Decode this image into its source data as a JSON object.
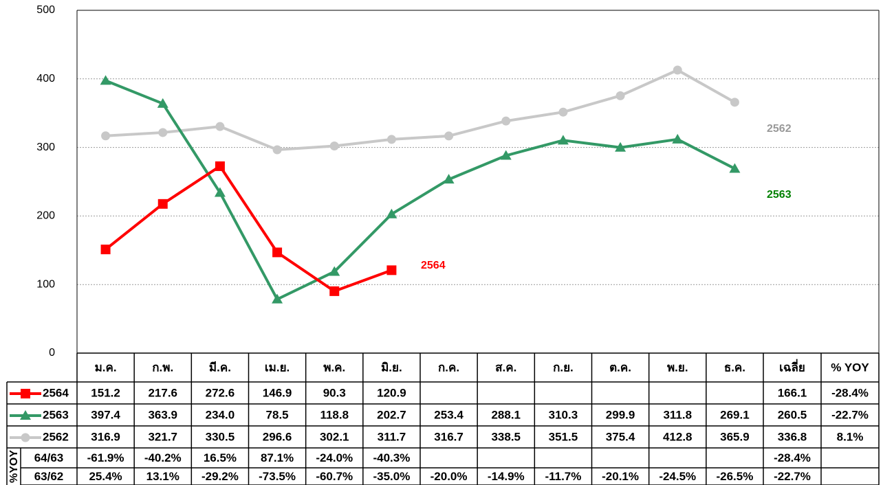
{
  "chart_data": {
    "type": "line",
    "categories": [
      "ม.ค.",
      "ก.พ.",
      "มี.ค.",
      "เม.ย.",
      "พ.ค.",
      "มิ.ย.",
      "ก.ค.",
      "ส.ค.",
      "ก.ย.",
      "ต.ค.",
      "พ.ย.",
      "ธ.ค."
    ],
    "average_header": "เฉลี่ย",
    "yoy_header": "% YOY",
    "yoy_group_label": "%YOY",
    "ylim": [
      0,
      500
    ],
    "yticks": [
      0,
      100,
      200,
      300,
      400,
      500
    ],
    "grid": true,
    "series": [
      {
        "name": "2564",
        "color": "#ff0000",
        "marker": "square",
        "values": [
          151.2,
          217.6,
          272.6,
          146.9,
          90.3,
          120.9,
          null,
          null,
          null,
          null,
          null,
          null
        ],
        "value_labels": [
          "151.2",
          "217.6",
          "272.6",
          "146.9",
          "90.3",
          "120.9",
          null,
          null,
          null,
          null,
          null,
          null
        ],
        "average": 166.1,
        "yoy": -28.4,
        "yoy_label": "-28.4%"
      },
      {
        "name": "2563",
        "color": "#339966",
        "label_color": "#008000",
        "marker": "triangle",
        "values": [
          397.4,
          363.9,
          234.0,
          78.5,
          118.8,
          202.7,
          253.4,
          288.1,
          310.3,
          299.9,
          311.8,
          269.1
        ],
        "value_labels": [
          "397.4",
          "363.9",
          "234.0",
          "78.5",
          "118.8",
          "202.7",
          "253.4",
          "288.1",
          "310.3",
          "299.9",
          "311.8",
          "269.1"
        ],
        "average": 260.5,
        "yoy": -22.7,
        "yoy_label": "-22.7%"
      },
      {
        "name": "2562",
        "color": "#c8c8c8",
        "label_color": "#999999",
        "marker": "circle",
        "values": [
          316.9,
          321.7,
          330.5,
          296.6,
          302.1,
          311.7,
          316.7,
          338.5,
          351.5,
          375.4,
          412.8,
          365.9
        ],
        "value_labels": [
          "316.9",
          "321.7",
          "330.5",
          "296.6",
          "302.1",
          "311.7",
          "316.7",
          "338.5",
          "351.5",
          "375.4",
          "412.8",
          "365.9"
        ],
        "average": 336.8,
        "yoy": 8.1,
        "yoy_label": "8.1%"
      }
    ],
    "yoy_rows": [
      {
        "name": "64/63",
        "values": [
          -61.9,
          -40.2,
          16.5,
          87.1,
          -24.0,
          -40.3,
          null,
          null,
          null,
          null,
          null,
          null
        ],
        "value_labels": [
          "-61.9%",
          "-40.2%",
          "16.5%",
          "87.1%",
          "-24.0%",
          "-40.3%",
          null,
          null,
          null,
          null,
          null,
          null
        ],
        "average": -28.4,
        "average_label": "-28.4%"
      },
      {
        "name": "63/62",
        "values": [
          25.4,
          13.1,
          -29.2,
          -73.5,
          -60.7,
          -35.0,
          -20.0,
          -14.9,
          -11.7,
          -20.1,
          -24.5,
          -26.5
        ],
        "value_labels": [
          "25.4%",
          "13.1%",
          "-29.2%",
          "-73.5%",
          "-60.7%",
          "-35.0%",
          "-20.0%",
          "-14.9%",
          "-11.7%",
          "-20.1%",
          "-24.5%",
          "-26.5%"
        ],
        "average": -22.7,
        "average_label": "-22.7%"
      }
    ]
  }
}
